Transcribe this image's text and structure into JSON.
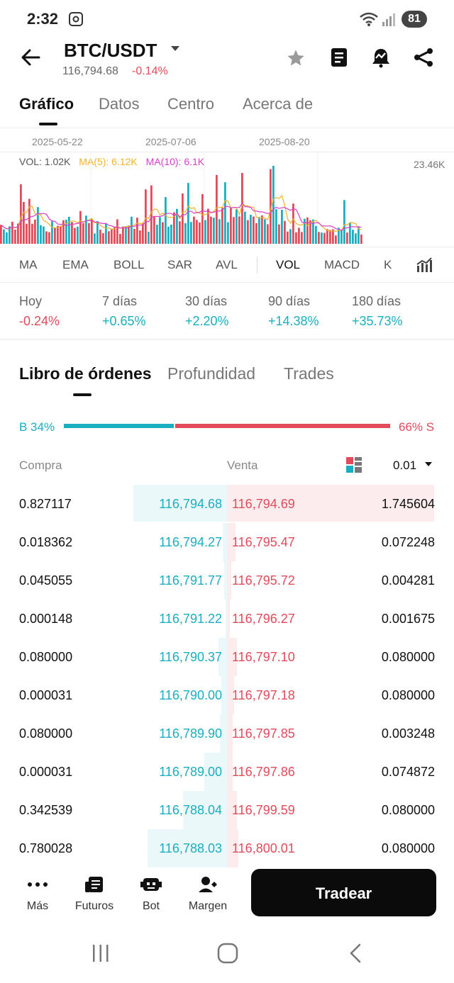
{
  "status": {
    "time": "2:32",
    "battery": "81"
  },
  "header": {
    "pair": "BTC/USDT",
    "last_price": "116,794.68",
    "change": "-0.14%"
  },
  "tabs": [
    {
      "label": "Gráfico",
      "active": true
    },
    {
      "label": "Datos",
      "active": false
    },
    {
      "label": "Centro",
      "active": false
    },
    {
      "label": "Acerca de",
      "active": false
    }
  ],
  "chart": {
    "dates": [
      "2025-05-22",
      "2025-07-06",
      "2025-08-20"
    ],
    "vol_label": "VOL: 1.02K",
    "ma5_label": "MA(5): 6.12K",
    "ma10_label": "MA(10): 6.1K",
    "ymax_label": "23.46K"
  },
  "indicators": [
    "MA",
    "EMA",
    "BOLL",
    "SAR",
    "AVL",
    "VOL",
    "MACD",
    "K"
  ],
  "performance": [
    {
      "label": "Hoy",
      "value": "-0.24%",
      "color": "#e14b5a"
    },
    {
      "label": "7 días",
      "value": "+0.65%",
      "color": "#19afc0"
    },
    {
      "label": "30 días",
      "value": "+2.20%",
      "color": "#19afc0"
    },
    {
      "label": "90 días",
      "value": "+14.38%",
      "color": "#19afc0"
    },
    {
      "label": "180 días",
      "value": "+35.73%",
      "color": "#19afc0"
    }
  ],
  "orderbook": {
    "tabs": [
      "Libro de órdenes",
      "Profundidad",
      "Trades"
    ],
    "buy_ratio": "B 34%",
    "sell_ratio": "66% S",
    "buy_fraction": 0.34,
    "col_buy": "Compra",
    "col_sell": "Venta",
    "precision": "0.01",
    "rows": [
      {
        "bid_qty": "0.827117",
        "bid": "116,794.68",
        "ask": "116,794.69",
        "ask_qty": "1.745604"
      },
      {
        "bid_qty": "0.018362",
        "bid": "116,794.27",
        "ask": "116,795.47",
        "ask_qty": "0.072248"
      },
      {
        "bid_qty": "0.045055",
        "bid": "116,791.77",
        "ask": "116,795.72",
        "ask_qty": "0.004281"
      },
      {
        "bid_qty": "0.000148",
        "bid": "116,791.22",
        "ask": "116,796.27",
        "ask_qty": "0.001675"
      },
      {
        "bid_qty": "0.080000",
        "bid": "116,790.37",
        "ask": "116,797.10",
        "ask_qty": "0.080000"
      },
      {
        "bid_qty": "0.000031",
        "bid": "116,790.00",
        "ask": "116,797.18",
        "ask_qty": "0.080000"
      },
      {
        "bid_qty": "0.080000",
        "bid": "116,789.90",
        "ask": "116,797.85",
        "ask_qty": "0.003248"
      },
      {
        "bid_qty": "0.000031",
        "bid": "116,789.00",
        "ask": "116,797.86",
        "ask_qty": "0.074872"
      },
      {
        "bid_qty": "0.342539",
        "bid": "116,788.04",
        "ask": "116,799.59",
        "ask_qty": "0.080000"
      },
      {
        "bid_qty": "0.780028",
        "bid": "116,788.03",
        "ask": "116,800.01",
        "ask_qty": "0.080000"
      }
    ]
  },
  "bottom_nav": [
    {
      "label": "Más",
      "icon": "more-icon"
    },
    {
      "label": "Futuros",
      "icon": "futures-icon"
    },
    {
      "label": "Bot",
      "icon": "bot-icon"
    },
    {
      "label": "Margen",
      "icon": "margin-icon"
    }
  ],
  "trade_button": "Tradear",
  "colors": {
    "up": "#19afc0",
    "down": "#e14b5a",
    "ma5": "#f0b429",
    "ma10": "#d63fc6"
  }
}
